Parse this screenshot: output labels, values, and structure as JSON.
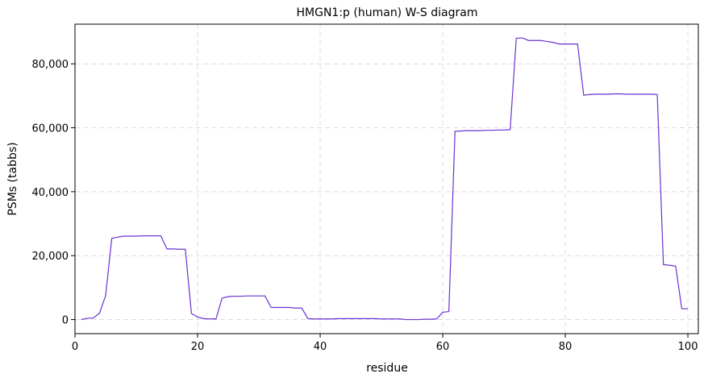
{
  "chart_data": {
    "type": "line",
    "title": "HMGN1:p (human) W-S diagram",
    "xlabel": "residue",
    "ylabel": "PSMs (tabbs)",
    "x": [
      1,
      2,
      3,
      4,
      5,
      6,
      7,
      8,
      9,
      10,
      11,
      12,
      13,
      14,
      15,
      16,
      17,
      18,
      19,
      20,
      21,
      22,
      23,
      24,
      25,
      26,
      27,
      28,
      29,
      30,
      31,
      32,
      33,
      34,
      35,
      36,
      37,
      38,
      39,
      40,
      41,
      42,
      43,
      44,
      45,
      46,
      47,
      48,
      49,
      50,
      51,
      52,
      53,
      54,
      55,
      56,
      57,
      58,
      59,
      60,
      61,
      62,
      63,
      64,
      65,
      66,
      67,
      68,
      69,
      70,
      71,
      72,
      73,
      74,
      75,
      76,
      77,
      78,
      79,
      80,
      81,
      82,
      83,
      84,
      85,
      86,
      87,
      88,
      89,
      90,
      91,
      92,
      93,
      94,
      95,
      96,
      97,
      98,
      99,
      100
    ],
    "series": [
      {
        "color": "#6a32d2",
        "values": [
          0,
          400,
          500,
          2000,
          7500,
          25400,
          25800,
          26100,
          26100,
          26100,
          26200,
          26200,
          26200,
          26200,
          22100,
          22100,
          22000,
          22000,
          1900,
          800,
          300,
          200,
          200,
          6700,
          7200,
          7300,
          7300,
          7400,
          7400,
          7400,
          7400,
          3800,
          3800,
          3800,
          3800,
          3600,
          3600,
          300,
          200,
          200,
          200,
          200,
          300,
          300,
          300,
          300,
          300,
          300,
          300,
          200,
          200,
          200,
          200,
          0,
          0,
          0,
          100,
          100,
          200,
          2300,
          2500,
          58900,
          59000,
          59100,
          59100,
          59100,
          59200,
          59200,
          59300,
          59300,
          59400,
          88000,
          88100,
          87300,
          87300,
          87300,
          87000,
          86700,
          86200,
          86200,
          86200,
          86200,
          70200,
          70400,
          70500,
          70500,
          70500,
          70600,
          70600,
          70500,
          70500,
          70500,
          70500,
          70500,
          70400,
          17200,
          17000,
          16700,
          3400,
          3400
        ]
      }
    ],
    "xlim": [
      0,
      101.7
    ],
    "xticks": [
      0,
      20,
      40,
      60,
      80,
      100
    ],
    "ylim": [
      -4400,
      92400
    ],
    "yticks": [
      0,
      {
        "value": 20000,
        "label": "20,000"
      },
      {
        "value": 40000,
        "label": "40,000"
      },
      {
        "value": 60000,
        "label": "60,000"
      },
      {
        "value": 80000,
        "label": "80,000"
      }
    ],
    "grid": true
  }
}
